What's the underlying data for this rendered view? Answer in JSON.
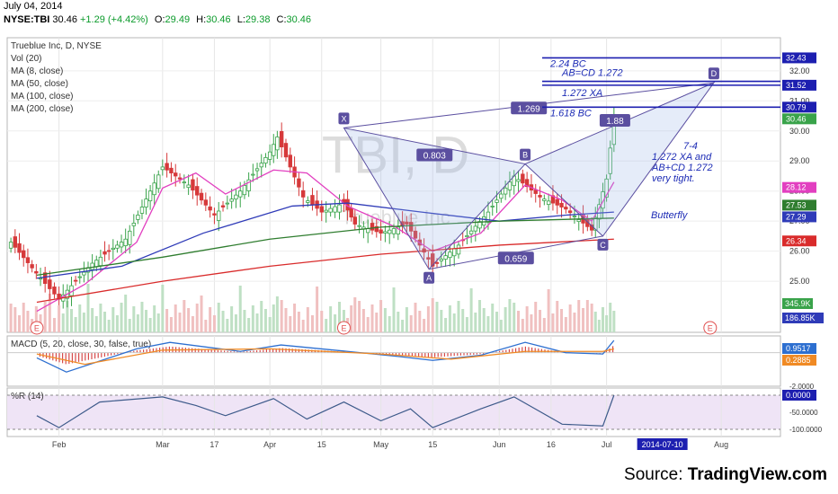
{
  "header": {
    "date": "July 04, 2014",
    "symbol": "NYSE:TBI",
    "last": "30.46",
    "change": "+1.29 (+4.42%)",
    "open_label": "O:",
    "open": "29.49",
    "high_label": "H:",
    "high": "30.46",
    "low_label": "L:",
    "low": "29.38",
    "close_label": "C:",
    "close": "30.46"
  },
  "legend": {
    "title": "Trueblue Inc, D, NYSE",
    "lines": [
      "Vol (20)",
      "MA (8, close)",
      "MA (50, close)",
      "MA (100, close)",
      "MA (200, close)"
    ]
  },
  "watermark": {
    "line1": "TBI, D",
    "line2": "Trueblue Inc"
  },
  "credit": {
    "prefix": "Source: ",
    "brand": "TradingView.com"
  },
  "colors": {
    "up": "#39a34a",
    "down": "#d6393a",
    "ma8": "#e23fc0",
    "ma50": "#2f3bb8",
    "ma100": "#2f7d2f",
    "ma200": "#d92b2b",
    "pattern": "#5b4fa0",
    "level_line": "#1d1fb0",
    "text_blue": "#1c2bb5"
  },
  "chart_data": [
    {
      "type": "candlestick",
      "title": "Trueblue Inc, D, NYSE",
      "ylim": [
        23.3,
        33.1
      ],
      "y_ticks": [
        25,
        26,
        27,
        28,
        29,
        30,
        31,
        32
      ],
      "y_tick_labels": [
        "25.00",
        "26.00",
        "27.00",
        "28.00",
        "29.00",
        "30.00",
        "31.00",
        "32.00"
      ],
      "x_labels": [
        {
          "label": "Feb",
          "date": "2014-02-03"
        },
        {
          "label": "Mar",
          "date": "2014-03-03"
        },
        {
          "label": "17",
          "date": "2014-03-17"
        },
        {
          "label": "Apr",
          "date": "2014-04-01"
        },
        {
          "label": "15",
          "date": "2014-04-15"
        },
        {
          "label": "May",
          "date": "2014-05-01"
        },
        {
          "label": "15",
          "date": "2014-05-15"
        },
        {
          "label": "Jun",
          "date": "2014-06-02"
        },
        {
          "label": "16",
          "date": "2014-06-16"
        },
        {
          "label": "Jul",
          "date": "2014-07-01"
        },
        {
          "label": "Aug",
          "date": "2014-08-01"
        }
      ],
      "cursor_date": "2014-07-10",
      "ohlc_anchor_points": [
        {
          "date": "2014-01-21",
          "close": 26.3
        },
        {
          "date": "2014-01-29",
          "close": 25.1
        },
        {
          "date": "2014-02-03",
          "close": 24.4
        },
        {
          "date": "2014-02-12",
          "close": 25.6
        },
        {
          "date": "2014-02-21",
          "close": 26.4
        },
        {
          "date": "2014-03-03",
          "close": 28.8
        },
        {
          "date": "2014-03-10",
          "close": 28.2
        },
        {
          "date": "2014-03-17",
          "close": 27.2
        },
        {
          "date": "2014-03-24",
          "close": 28.0
        },
        {
          "date": "2014-04-01",
          "close": 29.3
        },
        {
          "date": "2014-04-03",
          "close": 29.8
        },
        {
          "date": "2014-04-10",
          "close": 27.8
        },
        {
          "date": "2014-04-15",
          "close": 27.3
        },
        {
          "date": "2014-04-21",
          "close": 27.6
        },
        {
          "date": "2014-04-24",
          "close": 26.9
        },
        {
          "date": "2014-05-01",
          "close": 26.6
        },
        {
          "date": "2014-05-08",
          "close": 26.9
        },
        {
          "date": "2014-05-15",
          "close": 25.5
        },
        {
          "date": "2014-05-22",
          "close": 26.2
        },
        {
          "date": "2014-05-30",
          "close": 27.3
        },
        {
          "date": "2014-06-06",
          "close": 28.5
        },
        {
          "date": "2014-06-13",
          "close": 27.8
        },
        {
          "date": "2014-06-20",
          "close": 27.4
        },
        {
          "date": "2014-06-27",
          "close": 26.7
        },
        {
          "date": "2014-07-01",
          "close": 28.4
        },
        {
          "date": "2014-07-03",
          "close": 30.46
        }
      ],
      "moving_averages": [
        {
          "name": "MA (8, close)",
          "color": "#e23fc0",
          "points": [
            [
              "2014-01-28",
              24.0
            ],
            [
              "2014-02-10",
              24.9
            ],
            [
              "2014-02-24",
              26.3
            ],
            [
              "2014-03-03",
              28.1
            ],
            [
              "2014-03-12",
              28.6
            ],
            [
              "2014-03-20",
              27.9
            ],
            [
              "2014-04-02",
              28.7
            ],
            [
              "2014-04-11",
              28.6
            ],
            [
              "2014-04-22",
              27.5
            ],
            [
              "2014-05-05",
              26.8
            ],
            [
              "2014-05-15",
              26.0
            ],
            [
              "2014-05-28",
              26.6
            ],
            [
              "2014-06-09",
              28.2
            ],
            [
              "2014-06-19",
              27.7
            ],
            [
              "2014-06-27",
              27.0
            ],
            [
              "2014-07-03",
              28.3
            ]
          ]
        },
        {
          "name": "MA (50, close)",
          "color": "#2f3bb8",
          "points": [
            [
              "2014-01-28",
              25.1
            ],
            [
              "2014-02-20",
              25.5
            ],
            [
              "2014-03-14",
              26.6
            ],
            [
              "2014-04-07",
              27.5
            ],
            [
              "2014-04-22",
              27.6
            ],
            [
              "2014-05-12",
              27.3
            ],
            [
              "2014-06-02",
              27.0
            ],
            [
              "2014-06-20",
              27.2
            ],
            [
              "2014-07-03",
              27.3
            ]
          ]
        },
        {
          "name": "MA (100, close)",
          "color": "#2f7d2f",
          "points": [
            [
              "2014-01-28",
              25.2
            ],
            [
              "2014-03-03",
              25.8
            ],
            [
              "2014-04-01",
              26.4
            ],
            [
              "2014-05-01",
              26.8
            ],
            [
              "2014-06-02",
              27.0
            ],
            [
              "2014-07-03",
              27.1
            ]
          ]
        },
        {
          "name": "MA (200, close)",
          "color": "#d92b2b",
          "points": [
            [
              "2014-01-28",
              24.3
            ],
            [
              "2014-03-03",
              25.0
            ],
            [
              "2014-04-01",
              25.5
            ],
            [
              "2014-05-01",
              25.9
            ],
            [
              "2014-06-02",
              26.2
            ],
            [
              "2014-07-03",
              26.4
            ]
          ]
        }
      ],
      "pattern_points": [
        {
          "label": "X",
          "date": "2014-04-21",
          "value": 30.1
        },
        {
          "label": "A",
          "date": "2014-05-14",
          "value": 25.4
        },
        {
          "label": "B",
          "date": "2014-06-09",
          "value": 28.9
        },
        {
          "label": "C",
          "date": "2014-06-30",
          "value": 26.5
        },
        {
          "label": "D",
          "date": "2014-07-30",
          "value": 31.6
        }
      ],
      "ratio_labels": [
        "0.803",
        "0.659",
        "1.269",
        "1.88"
      ],
      "level_lines": [
        {
          "label": "2.24 BC",
          "value": 32.43
        },
        {
          "label": "AB=CD 1.272",
          "value": 31.65
        },
        {
          "label": "1.272 XA",
          "value": 31.52
        },
        {
          "label": "1.618 BC",
          "value": 30.79
        }
      ],
      "annotation": [
        "7-4",
        "1.272 XA and",
        "AB+CD 1.272",
        "very tight."
      ],
      "annotation_2": "Butterfly",
      "price_tags": [
        {
          "text": "32.43",
          "value": 32.43,
          "bg": "#1d1fb0",
          "fg": "#ffffff"
        },
        {
          "text": "31.52",
          "value": 31.52,
          "bg": "#1d1fb0",
          "fg": "#ffffff"
        },
        {
          "text": "30.79",
          "value": 30.79,
          "bg": "#1d1fb0",
          "fg": "#ffffff"
        },
        {
          "text": "30.46",
          "value": 30.46,
          "bg": "#39a34a",
          "fg": "#ffffff"
        },
        {
          "text": "28.12",
          "value": 28.12,
          "bg": "#e23fc0",
          "fg": "#ffffff"
        },
        {
          "text": "27.53",
          "value": 27.53,
          "bg": "#2f7d2f",
          "fg": "#ffffff"
        },
        {
          "text": "27.29",
          "value": 27.29,
          "bg": "#2f3bb8",
          "fg": "#ffffff"
        },
        {
          "text": "26.34",
          "value": 26.34,
          "bg": "#d92b2b",
          "fg": "#ffffff"
        }
      ],
      "earnings_marker": "E",
      "volume": {
        "name": "Vol (20)",
        "tags": [
          "345.9K",
          "186.85K"
        ]
      }
    },
    {
      "type": "line",
      "title": "MACD (5, 20, close, 30, false, true)",
      "ylim": [
        -2.6,
        1.3
      ],
      "y_tick_labels": [
        "-2.0000"
      ],
      "series": [
        {
          "name": "MACD",
          "color": "#2d6fd0",
          "points": [
            [
              "2014-01-28",
              -0.4
            ],
            [
              "2014-02-05",
              -1.5
            ],
            [
              "2014-02-24",
              0.3
            ],
            [
              "2014-03-05",
              0.8
            ],
            [
              "2014-03-24",
              0.1
            ],
            [
              "2014-04-04",
              0.6
            ],
            [
              "2014-04-22",
              0.1
            ],
            [
              "2014-05-06",
              -0.3
            ],
            [
              "2014-05-15",
              -0.6
            ],
            [
              "2014-05-28",
              -0.2
            ],
            [
              "2014-06-09",
              0.8
            ],
            [
              "2014-06-20",
              0.0
            ],
            [
              "2014-06-30",
              -0.1
            ],
            [
              "2014-07-03",
              0.95
            ]
          ]
        },
        {
          "name": "Signal",
          "color": "#f08a24",
          "points": [
            [
              "2014-01-28",
              -0.1
            ],
            [
              "2014-02-10",
              -0.9
            ],
            [
              "2014-03-03",
              0.2
            ],
            [
              "2014-04-01",
              0.3
            ],
            [
              "2014-05-01",
              -0.1
            ],
            [
              "2014-05-20",
              -0.5
            ],
            [
              "2014-06-09",
              0.1
            ],
            [
              "2014-06-30",
              0.1
            ],
            [
              "2014-07-03",
              0.29
            ]
          ]
        }
      ],
      "tags": [
        {
          "text": "0.9517",
          "bg": "#2d6fd0"
        },
        {
          "text": "0.2885",
          "bg": "#f08a24"
        }
      ]
    },
    {
      "type": "line",
      "title": "%R (14)",
      "ylim": [
        -100,
        0
      ],
      "y_tick_labels": [
        "0.0000",
        "-50.0000",
        "-100.0000"
      ],
      "series": [
        {
          "name": "%R (14)",
          "color": "#3d5a8a",
          "points": [
            [
              "2014-01-28",
              -60
            ],
            [
              "2014-02-03",
              -95
            ],
            [
              "2014-02-14",
              -20
            ],
            [
              "2014-03-03",
              -5
            ],
            [
              "2014-03-12",
              -30
            ],
            [
              "2014-03-20",
              -60
            ],
            [
              "2014-04-02",
              -10
            ],
            [
              "2014-04-11",
              -70
            ],
            [
              "2014-04-21",
              -20
            ],
            [
              "2014-05-01",
              -75
            ],
            [
              "2014-05-09",
              -40
            ],
            [
              "2014-05-15",
              -95
            ],
            [
              "2014-05-28",
              -40
            ],
            [
              "2014-06-06",
              -5
            ],
            [
              "2014-06-19",
              -85
            ],
            [
              "2014-06-30",
              -90
            ],
            [
              "2014-07-03",
              0
            ]
          ]
        }
      ],
      "tags": [
        {
          "text": "0.0000",
          "bg": "#1d1fb0"
        }
      ]
    }
  ]
}
